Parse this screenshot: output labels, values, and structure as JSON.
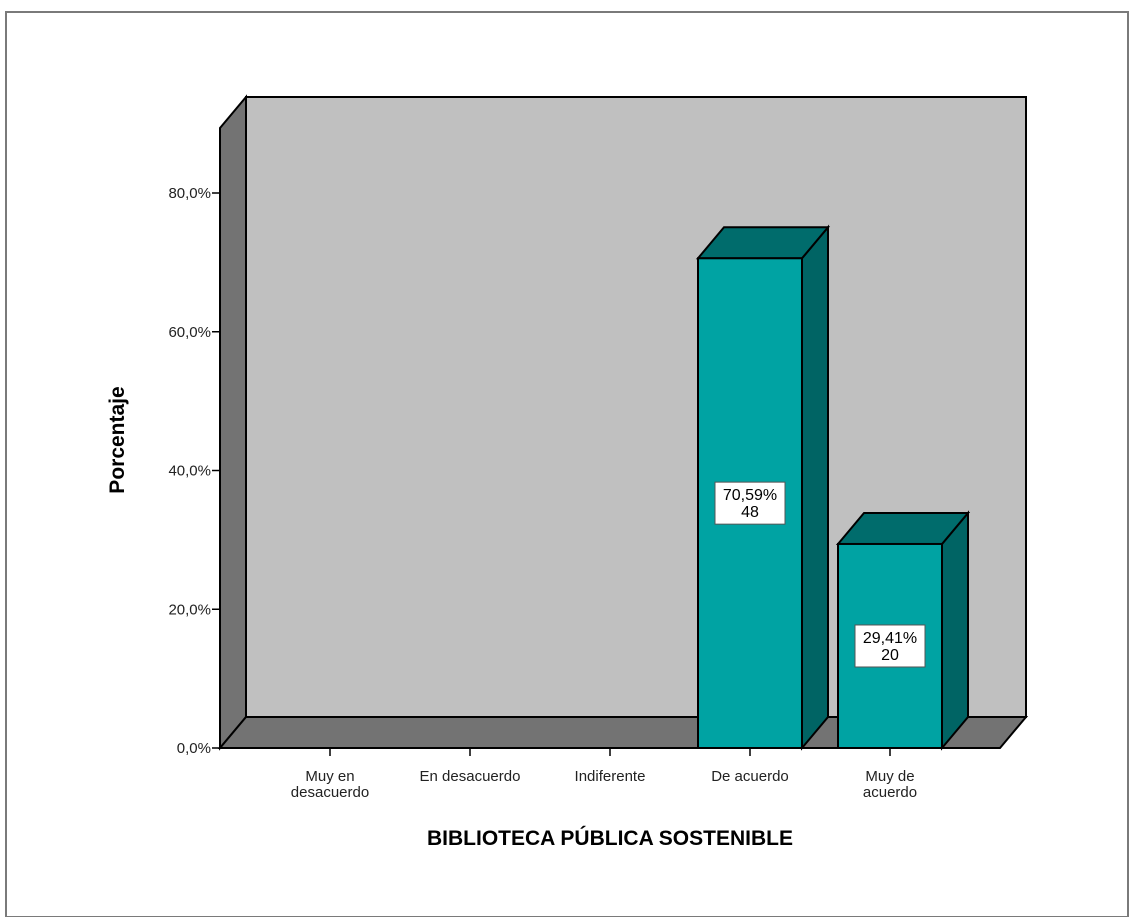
{
  "chart_data": {
    "type": "bar",
    "title": "",
    "xlabel": "BIBLIOTECA PÚBLICA SOSTENIBLE",
    "ylabel": "Porcentaje",
    "categories": [
      [
        "Muy en",
        "desacuerdo"
      ],
      [
        "En desacuerdo"
      ],
      [
        "Indiferente"
      ],
      [
        "De acuerdo"
      ],
      [
        "Muy de",
        "acuerdo"
      ]
    ],
    "values": [
      0,
      0,
      0,
      70.59,
      29.41
    ],
    "counts": [
      0,
      0,
      0,
      48,
      20
    ],
    "data_labels": [
      "",
      "",
      "",
      "70,59%",
      "29,41%"
    ],
    "count_labels": [
      "",
      "",
      "",
      "48",
      "20"
    ],
    "ylim": [
      0,
      80
    ],
    "yticks": [
      0,
      20,
      40,
      60,
      80
    ],
    "ytick_labels": [
      "0,0%",
      "20,0%",
      "40,0%",
      "60,0%",
      "80,0%"
    ],
    "grid": false,
    "style": "3d",
    "colors": {
      "bar_front": "#00a3a3",
      "bar_top": "#006c6c",
      "bar_side": "#006464",
      "wall_back": "#c0c0c0",
      "wall_side": "#737373",
      "floor": "#737373",
      "frame": "#7a7a7a"
    }
  }
}
